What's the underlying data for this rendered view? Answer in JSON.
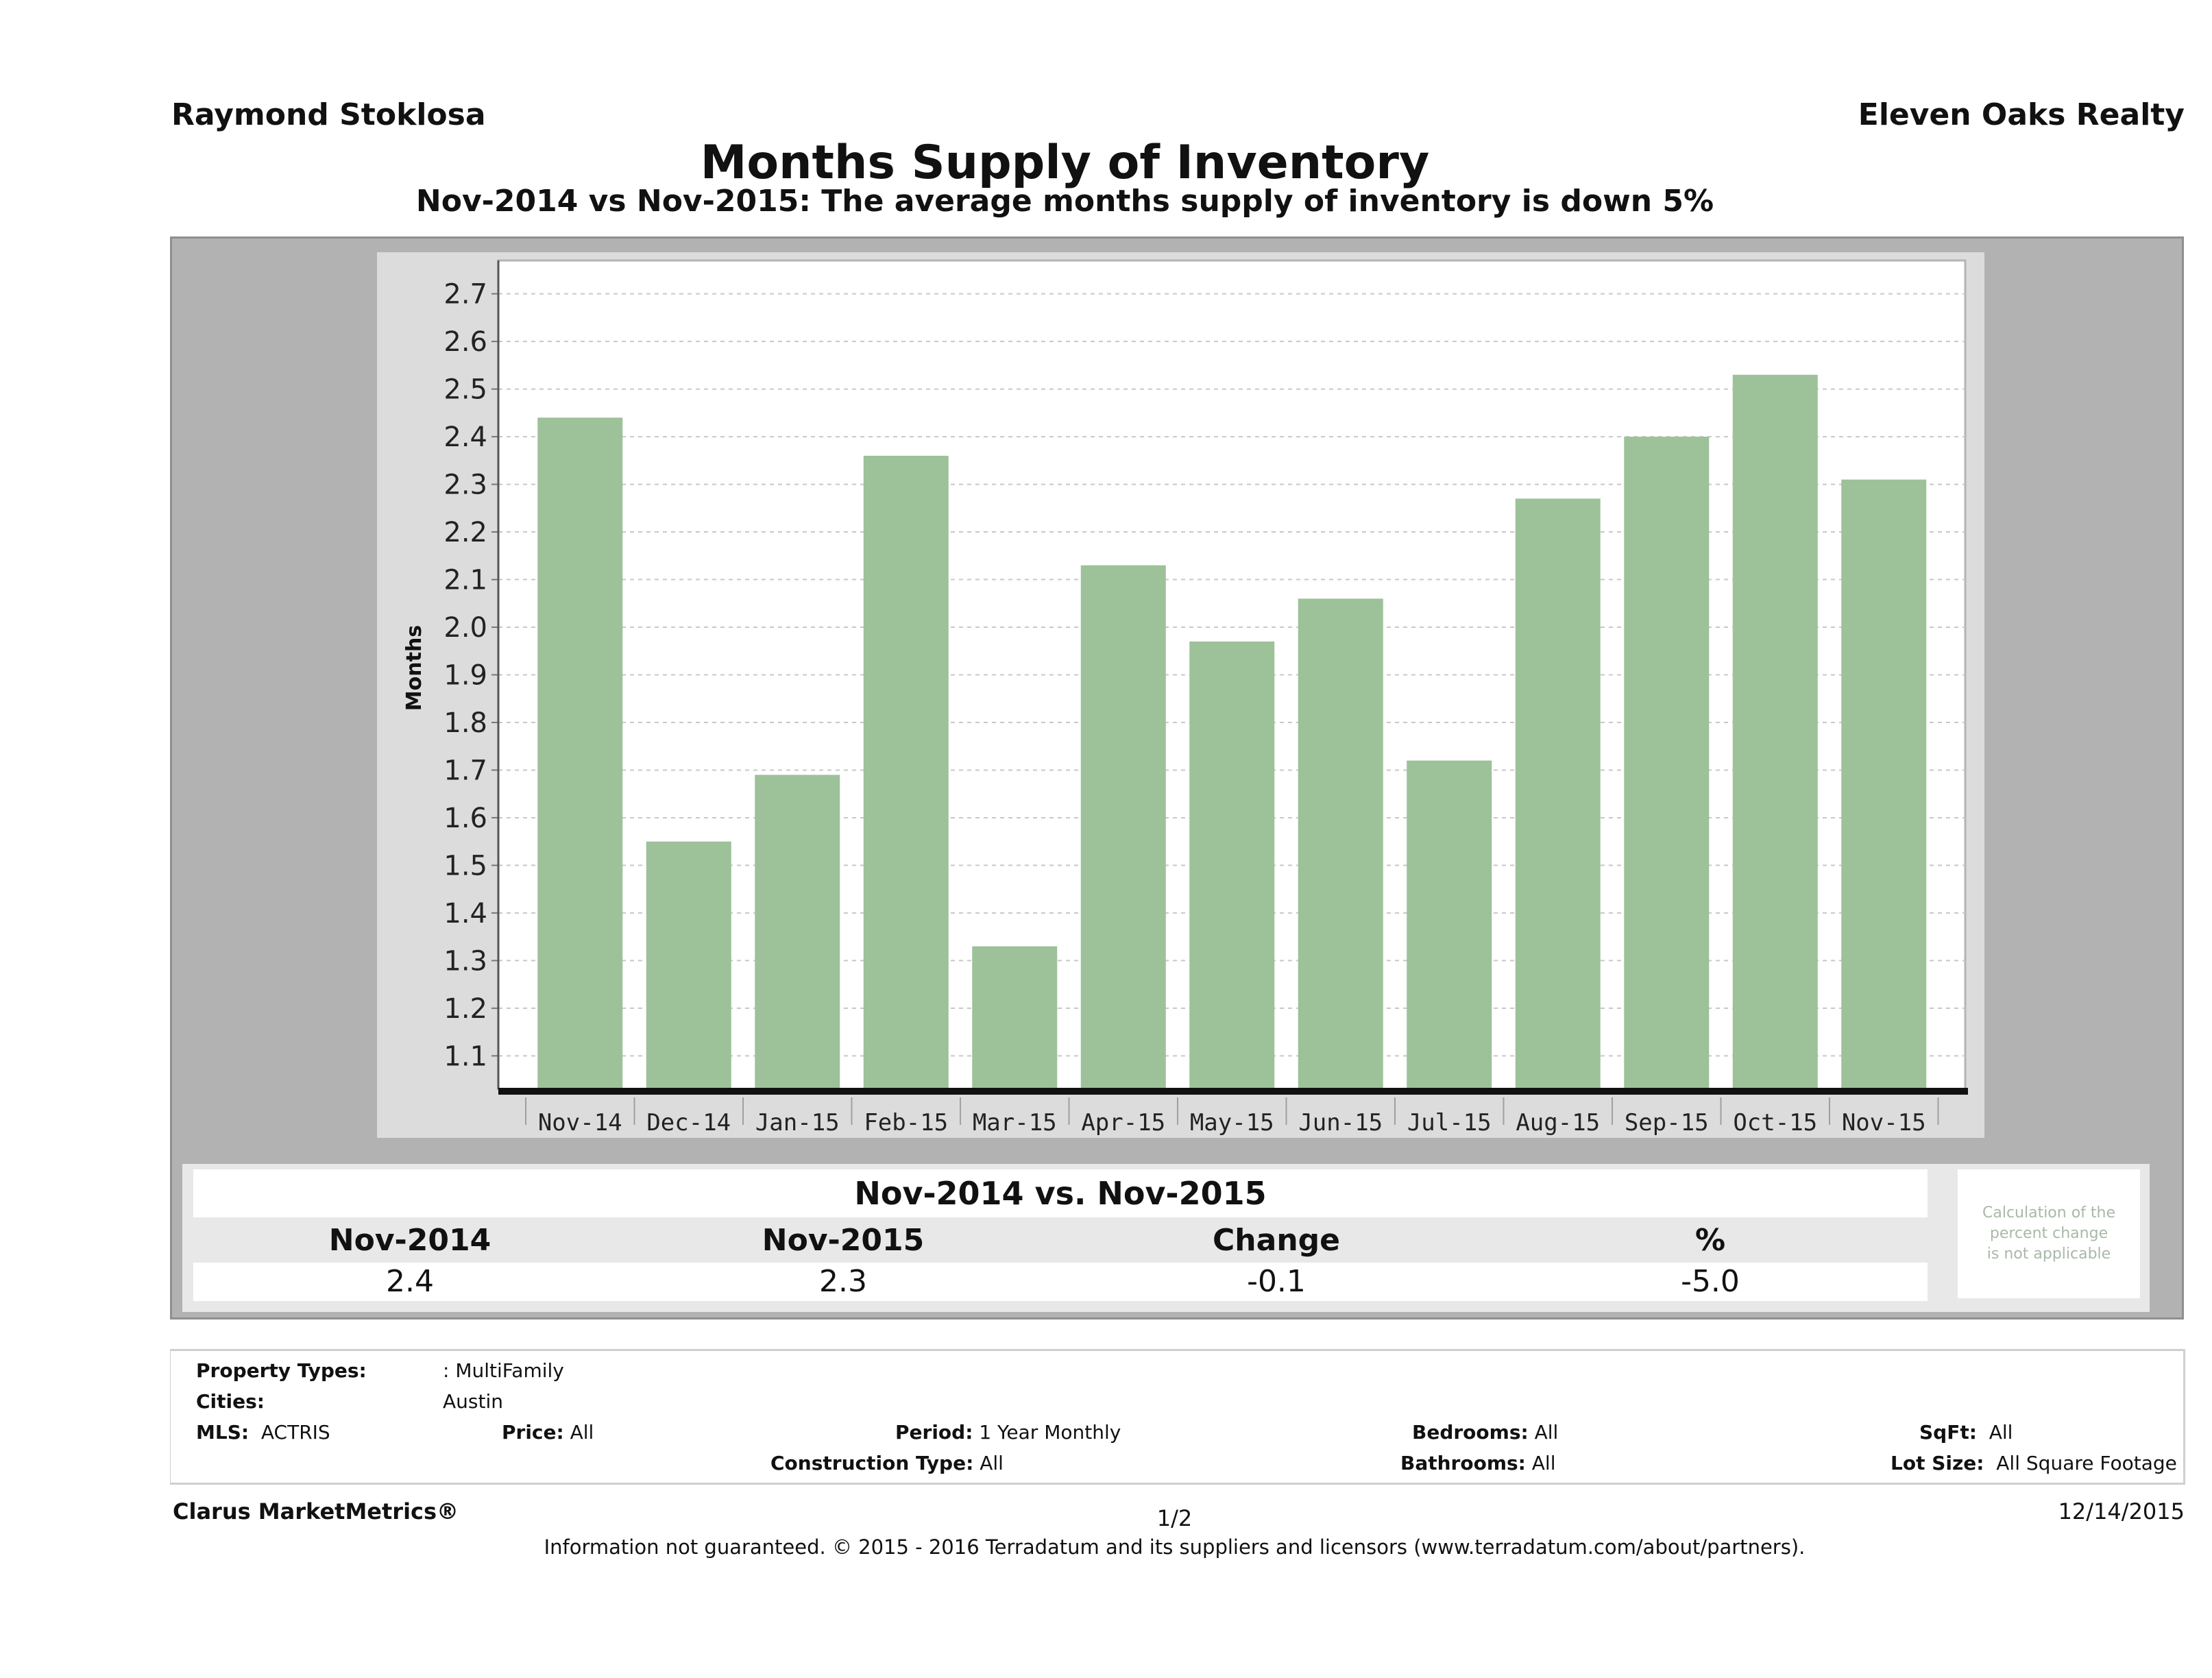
{
  "header": {
    "agent_name": "Raymond Stoklosa",
    "company_name": "Eleven Oaks Realty",
    "title": "Months Supply of Inventory",
    "subtitle": "Nov-2014 vs Nov-2015: The average months supply of inventory is down 5%"
  },
  "chart_data": {
    "type": "bar",
    "title": "Months Supply of Inventory",
    "xlabel": "",
    "ylabel": "Months",
    "categories": [
      "Nov-14",
      "Dec-14",
      "Jan-15",
      "Feb-15",
      "Mar-15",
      "Apr-15",
      "May-15",
      "Jun-15",
      "Jul-15",
      "Aug-15",
      "Sep-15",
      "Oct-15",
      "Nov-15"
    ],
    "values": [
      2.44,
      1.55,
      1.69,
      2.36,
      1.33,
      2.13,
      1.97,
      2.06,
      1.72,
      2.27,
      2.4,
      2.53,
      2.31
    ],
    "ylim": [
      1.03,
      2.77
    ],
    "yticks": [
      "1.1",
      "1.2",
      "1.3",
      "1.4",
      "1.5",
      "1.6",
      "1.7",
      "1.8",
      "1.9",
      "2.0",
      "2.1",
      "2.2",
      "2.3",
      "2.4",
      "2.5",
      "2.6",
      "2.7"
    ],
    "grid": true,
    "legend": "none",
    "bar_color": "#9dc199"
  },
  "comparison": {
    "title": "Nov-2014 vs. Nov-2015",
    "headers": [
      "Nov-2014",
      "Nov-2015",
      "Change",
      "%"
    ],
    "values": [
      "2.4",
      "2.3",
      "-0.1",
      "-5.0"
    ],
    "note": "Calculation of the\npercent change\nis not applicable"
  },
  "filters": {
    "property_types_label": "Property Types:",
    "property_types_value": ": MultiFamily",
    "cities_label": "Cities:",
    "cities_value": "Austin",
    "mls_label": "MLS:",
    "mls_value": "ACTRIS",
    "price_label": "Price:",
    "price_value": "All",
    "period_label": "Period:",
    "period_value": "1 Year Monthly",
    "bedrooms_label": "Bedrooms:",
    "bedrooms_value": "All",
    "sqft_label": "SqFt:",
    "sqft_value": "All",
    "construction_label": "Construction Type:",
    "construction_value": "All",
    "bathrooms_label": "Bathrooms:",
    "bathrooms_value": "All",
    "lotsize_label": "Lot Size:",
    "lotsize_value": "All Square Footage"
  },
  "footer": {
    "brand": "Clarus MarketMetrics®",
    "page": "1/2",
    "date": "12/14/2015",
    "disclaimer": "Information not guaranteed. © 2015 - 2016 Terradatum and its suppliers and licensors (www.terradatum.com/about/partners)."
  }
}
